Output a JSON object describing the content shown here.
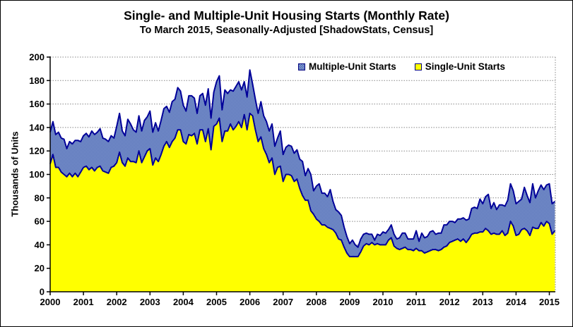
{
  "title": "Single- and Multiple-Unit Housing Starts (Monthly Rate)",
  "subtitle": "To March 2015, Seasonally-Adjusted [ShadowStats, Census]",
  "colors": {
    "single_fill": "#FFFF00",
    "multi_fill_light": "#8CA3D9",
    "multi_fill_dark": "#4964AC",
    "outline": "#000099",
    "grid": "#888888",
    "axis": "#000000"
  },
  "chart_data": {
    "type": "area",
    "stacked": true,
    "title": "Single- and Multiple-Unit Housing Starts (Monthly Rate)",
    "subtitle": "To March 2015, Seasonally-Adjusted [ShadowStats, Census]",
    "xlabel": "",
    "ylabel": "Thousands of Units",
    "ylim": [
      0,
      200
    ],
    "y_ticks": [
      0,
      20,
      40,
      60,
      80,
      100,
      120,
      140,
      160,
      180,
      200
    ],
    "x_ticks": [
      2000,
      2001,
      2002,
      2003,
      2004,
      2005,
      2006,
      2007,
      2008,
      2009,
      2010,
      2011,
      2012,
      2013,
      2014,
      2015
    ],
    "x_start": "2000-01",
    "x_end": "2015-03",
    "grid": "horizontal-dotted",
    "legend_position": "top-inside",
    "legend": [
      {
        "label": "Multiple-Unit Starts",
        "color": "#4964AC"
      },
      {
        "label": "Single-Unit Starts",
        "color": "#FFFF00"
      }
    ],
    "series": [
      {
        "name": "Single-Unit Starts",
        "values": [
          109,
          117,
          106,
          106,
          102,
          100,
          98,
          101,
          98,
          101,
          98,
          102,
          106,
          107,
          104,
          106,
          103,
          106,
          107,
          103,
          102,
          101,
          106,
          107,
          110,
          119,
          110,
          107,
          114,
          111,
          111,
          110,
          120,
          110,
          115,
          120,
          122,
          108,
          114,
          111,
          117,
          124,
          128,
          123,
          128,
          131,
          138,
          138,
          128,
          126,
          134,
          133,
          135,
          126,
          138,
          138,
          128,
          139,
          121,
          141,
          143,
          148,
          128,
          137,
          137,
          143,
          138,
          141,
          145,
          140,
          151,
          138,
          152,
          150,
          138,
          128,
          132,
          122,
          117,
          110,
          114,
          100,
          106,
          107,
          94,
          100,
          100,
          99,
          94,
          96,
          88,
          82,
          78,
          78,
          69,
          66,
          62,
          60,
          57,
          57,
          55,
          54,
          53,
          50,
          45,
          44,
          38,
          33,
          30,
          30,
          30,
          30,
          34,
          39,
          41,
          40,
          42,
          40,
          41,
          40,
          40,
          40,
          44,
          46,
          39,
          37,
          36,
          37,
          38,
          36,
          36,
          35,
          37,
          35,
          35,
          33,
          34,
          35,
          36,
          36,
          35,
          36,
          38,
          39,
          42,
          43,
          44,
          45,
          43,
          45,
          42,
          45,
          49,
          50,
          50,
          51,
          51,
          54,
          52,
          49,
          50,
          49,
          49,
          52,
          48,
          50,
          60,
          56,
          48,
          49,
          53,
          54,
          52,
          48,
          55,
          54,
          54,
          59,
          56,
          60,
          58,
          49,
          52
        ]
      },
      {
        "name": "Multiple-Unit Starts",
        "values": [
          27,
          28,
          28,
          30,
          29,
          30,
          24,
          27,
          28,
          28,
          31,
          26,
          27,
          28,
          28,
          31,
          31,
          30,
          32,
          28,
          28,
          27,
          27,
          24,
          31,
          33,
          27,
          26,
          33,
          32,
          27,
          26,
          30,
          27,
          31,
          29,
          32,
          28,
          30,
          26,
          29,
          32,
          30,
          30,
          34,
          33,
          36,
          33,
          31,
          28,
          33,
          34,
          30,
          26,
          29,
          31,
          31,
          34,
          27,
          29,
          36,
          36,
          27,
          35,
          32,
          29,
          33,
          34,
          34,
          32,
          28,
          28,
          37,
          27,
          26,
          24,
          30,
          28,
          28,
          27,
          29,
          24,
          25,
          30,
          23,
          23,
          25,
          25,
          24,
          25,
          25,
          29,
          21,
          27,
          31,
          20,
          28,
          32,
          27,
          27,
          26,
          33,
          24,
          20,
          23,
          21,
          17,
          14,
          11,
          14,
          10,
          8,
          11,
          10,
          9,
          9,
          7,
          4,
          8,
          8,
          11,
          10,
          9,
          11,
          10,
          8,
          10,
          13,
          12,
          9,
          9,
          10,
          15,
          8,
          15,
          13,
          13,
          16,
          16,
          13,
          15,
          14,
          19,
          18,
          18,
          17,
          15,
          17,
          19,
          18,
          19,
          17,
          22,
          22,
          21,
          28,
          24,
          27,
          31,
          22,
          26,
          21,
          25,
          22,
          25,
          28,
          32,
          30,
          27,
          28,
          26,
          35,
          30,
          28,
          37,
          26,
          32,
          32,
          31,
          31,
          34,
          26,
          25
        ]
      }
    ]
  }
}
